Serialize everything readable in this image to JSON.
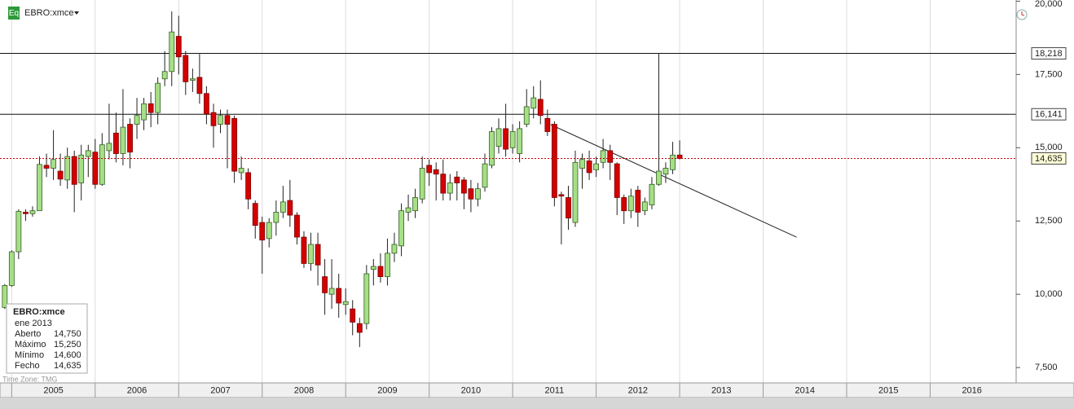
{
  "chart_data": {
    "type": "candlestick",
    "symbol": "EBRO:xmce",
    "icon": "Eq",
    "time_zone": "Time Zone: TMG",
    "x": [
      2004.917,
      2005,
      2005.083,
      2005.167,
      2005.25,
      2005.333,
      2005.417,
      2005.5,
      2005.583,
      2005.667,
      2005.75,
      2005.833,
      2005.917,
      2006,
      2006.083,
      2006.167,
      2006.25,
      2006.333,
      2006.417,
      2006.5,
      2006.583,
      2006.667,
      2006.75,
      2006.833,
      2006.917,
      2007,
      2007.083,
      2007.167,
      2007.25,
      2007.333,
      2007.417,
      2007.5,
      2007.583,
      2007.667,
      2007.75,
      2007.833,
      2007.917,
      2008,
      2008.083,
      2008.167,
      2008.25,
      2008.333,
      2008.417,
      2008.5,
      2008.583,
      2008.667,
      2008.75,
      2008.833,
      2008.917,
      2009,
      2009.083,
      2009.167,
      2009.25,
      2009.333,
      2009.417,
      2009.5,
      2009.583,
      2009.667,
      2009.75,
      2009.833,
      2009.917,
      2010,
      2010.083,
      2010.167,
      2010.25,
      2010.333,
      2010.417,
      2010.5,
      2010.583,
      2010.667,
      2010.75,
      2010.833,
      2010.917,
      2011,
      2011.083,
      2011.167,
      2011.25,
      2011.333,
      2011.417,
      2011.5,
      2011.583,
      2011.667,
      2011.75,
      2011.833,
      2011.917,
      2012,
      2012.083,
      2012.167,
      2012.25,
      2012.333,
      2012.417,
      2012.5,
      2012.583,
      2012.667,
      2012.75,
      2012.833,
      2012.917,
      2013
    ],
    "open": [
      9550,
      10300,
      11450,
      12800,
      12750,
      12850,
      14400,
      14300,
      14200,
      13900,
      14700,
      13800,
      14700,
      14850,
      13750,
      14900,
      15500,
      14800,
      15800,
      15800,
      15950,
      16500,
      16200,
      17350,
      17600,
      18800,
      18150,
      17300,
      17400,
      16850,
      16200,
      15800,
      16100,
      16000,
      14150,
      14150,
      13100,
      12450,
      11900,
      12450,
      12800,
      13200,
      12700,
      11950,
      11050,
      11700,
      10600,
      10000,
      10200,
      9650,
      9500,
      9000,
      9000,
      10850,
      10950,
      10600,
      11400,
      11650,
      12800,
      12850,
      13250,
      14400,
      14250,
      14100,
      13450,
      14000,
      13900,
      13600,
      13250,
      13650,
      14400,
      15050,
      15650,
      15000,
      14800,
      15800,
      16350,
      16650,
      16000,
      15800,
      13400,
      13300,
      12450,
      14300,
      14550,
      14250,
      14500,
      14900,
      14450,
      13300,
      12850,
      13550,
      12850,
      13050,
      13750,
      14100,
      14250,
      14750
    ],
    "high": [
      10350,
      11500,
      12900,
      12900,
      13000,
      14700,
      14800,
      15600,
      14800,
      15000,
      14900,
      15100,
      15100,
      15300,
      15500,
      16500,
      16200,
      17000,
      16000,
      16700,
      16700,
      16900,
      17400,
      18300,
      19650,
      19500,
      18300,
      17700,
      18200,
      17100,
      16500,
      16300,
      16300,
      16100,
      14700,
      14300,
      13200,
      12650,
      12600,
      13200,
      13700,
      13900,
      12800,
      12150,
      12100,
      12100,
      11200,
      11200,
      10700,
      10200,
      9800,
      9200,
      11000,
      11200,
      11400,
      11900,
      12100,
      13100,
      13400,
      13600,
      14700,
      14600,
      14500,
      14600,
      14100,
      14200,
      14000,
      13900,
      13800,
      14800,
      15700,
      16000,
      16500,
      15800,
      15900,
      17000,
      17100,
      17300,
      16300,
      15900,
      13500,
      13700,
      14900,
      14800,
      14900,
      14700,
      15300,
      15100,
      14500,
      13400,
      13600,
      13700,
      13300,
      14000,
      18218,
      14500,
      15200,
      15250
    ],
    "low": [
      9500,
      10250,
      11200,
      12500,
      12650,
      12850,
      14000,
      13900,
      13700,
      13600,
      12800,
      13200,
      14000,
      13600,
      13700,
      14600,
      14500,
      14400,
      14300,
      15300,
      15600,
      15700,
      15800,
      17100,
      17100,
      17500,
      16800,
      16900,
      16500,
      15800,
      15000,
      15500,
      14300,
      13800,
      13900,
      12900,
      11900,
      10700,
      11600,
      12000,
      12600,
      12300,
      11700,
      10900,
      10800,
      10300,
      9300,
      9500,
      9200,
      9300,
      8600,
      8200,
      8800,
      10300,
      10400,
      10300,
      11100,
      11300,
      12500,
      12600,
      13100,
      13700,
      13200,
      13200,
      13200,
      13200,
      12900,
      12800,
      13000,
      13500,
      14300,
      14800,
      14700,
      14800,
      14500,
      15700,
      16000,
      15800,
      15400,
      13000,
      11700,
      12200,
      12300,
      13600,
      13900,
      14000,
      14300,
      13900,
      12700,
      12400,
      12600,
      12300,
      12700,
      12900,
      13700,
      13800,
      14100,
      14600
    ],
    "close": [
      10300,
      11450,
      12830,
      12750,
      12850,
      14430,
      14300,
      14600,
      13930,
      14700,
      13750,
      14750,
      14900,
      13750,
      15100,
      15150,
      14800,
      15700,
      14850,
      16100,
      16500,
      16200,
      17200,
      17600,
      18950,
      18100,
      17250,
      17350,
      16850,
      16150,
      15750,
      16100,
      15800,
      14200,
      14300,
      13250,
      12350,
      11850,
      12450,
      12800,
      13150,
      12700,
      11950,
      11050,
      11700,
      11000,
      10050,
      10200,
      9700,
      9750,
      9050,
      8700,
      10700,
      10950,
      10600,
      11400,
      11700,
      12850,
      12950,
      13300,
      14300,
      14150,
      14100,
      13450,
      13800,
      13800,
      13450,
      13250,
      13600,
      14450,
      15550,
      15650,
      14950,
      15550,
      15650,
      16400,
      16700,
      16100,
      15550,
      13300,
      13350,
      12600,
      14500,
      14600,
      14150,
      14450,
      14900,
      14500,
      13300,
      12850,
      13350,
      12800,
      13150,
      13750,
      14200,
      14300,
      14750,
      14635
    ],
    "up_color": "#a6df86",
    "down_color": "#d40000",
    "xlim": [
      2004.86,
      2017.03
    ],
    "ylim": [
      6975,
      20040
    ],
    "xticks": [
      2005,
      2006,
      2007,
      2008,
      2009,
      2010,
      2011,
      2012,
      2013,
      2014,
      2015,
      2016
    ],
    "yticks": [
      {
        "value": 7500,
        "label": "7,500"
      },
      {
        "value": 10000,
        "label": "10,000"
      },
      {
        "value": 12500,
        "label": "12,500"
      },
      {
        "value": 15000,
        "label": "15,000"
      },
      {
        "value": 17500,
        "label": "17,500"
      },
      {
        "value": 20000,
        "label": "20,000"
      }
    ],
    "grid": "x",
    "hlines": [
      {
        "value": 18218,
        "label": "18,218"
      },
      {
        "value": 16141,
        "label": "16,141"
      }
    ],
    "last_price": {
      "value": 14635,
      "label": "14,635",
      "color": "#cc0000"
    },
    "trendline": {
      "x": [
        2011.456,
        2014.4
      ],
      "y": [
        15787,
        11948
      ]
    },
    "info": {
      "title": "EBRO:xmce",
      "date": "ene 2013",
      "rows": [
        [
          "Aberto",
          "14,750"
        ],
        [
          "Máximo",
          "15,250"
        ],
        [
          "Mínimo",
          "14,600"
        ],
        [
          "Fecho",
          "14,635"
        ]
      ]
    }
  }
}
